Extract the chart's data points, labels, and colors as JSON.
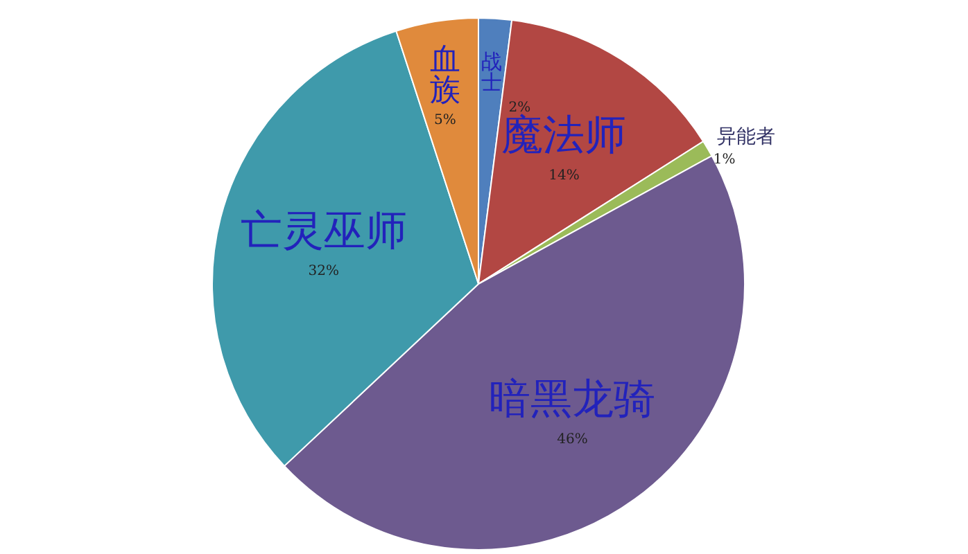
{
  "chart_data": {
    "type": "pie",
    "categories": [
      "战士",
      "魔法师",
      "异能者",
      "暗黑龙骑",
      "亡灵巫师",
      "血族"
    ],
    "values": [
      2,
      14,
      1,
      46,
      32,
      5
    ],
    "value_labels": [
      "2%",
      "14%",
      "1%",
      "46%",
      "32%",
      "5%"
    ],
    "colors": [
      "#4f7fbd",
      "#b24743",
      "#9bbb59",
      "#6d5a8f",
      "#3f9aab",
      "#e08a3c"
    ]
  }
}
